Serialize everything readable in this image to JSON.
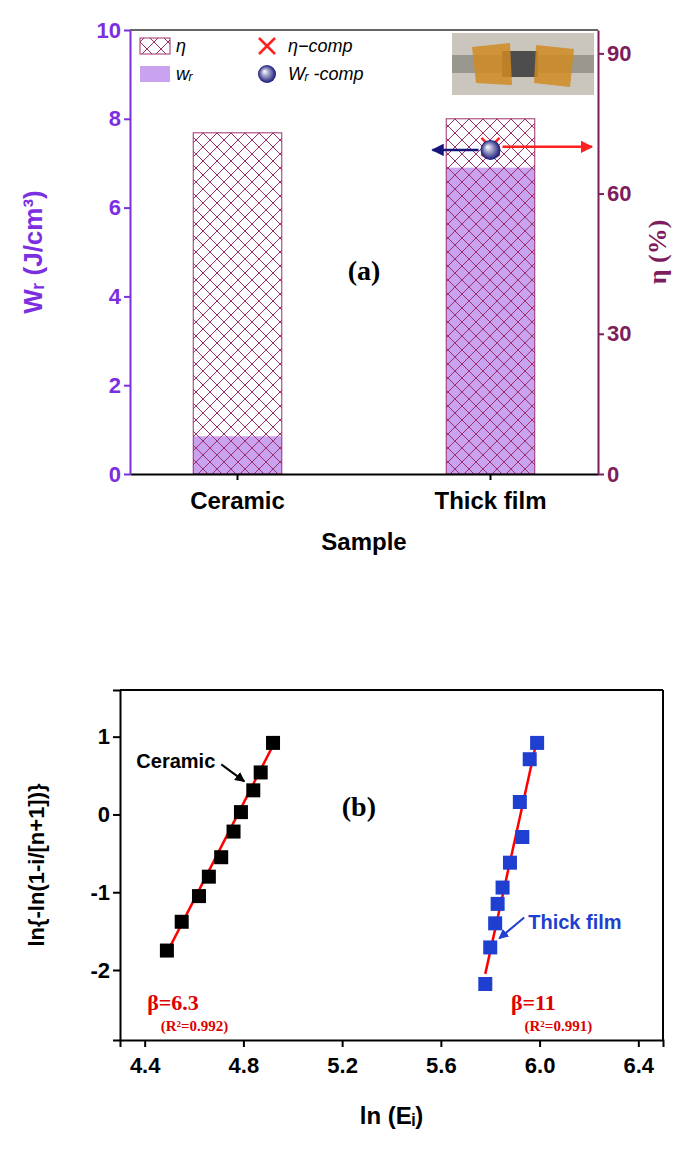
{
  "chart_data": [
    {
      "type": "bar",
      "annotations": [
        "(a)"
      ],
      "categories": [
        "Ceramic",
        "Thick film"
      ],
      "x_label": "Sample",
      "y_label": "Wᵣ (J/cm³)",
      "y2_label": "η (%)",
      "ylim": [
        0,
        10
      ],
      "yticks": [
        0,
        2,
        4,
        6,
        8,
        10
      ],
      "y2lim": [
        0,
        95
      ],
      "y2ticks": [
        0,
        30,
        60,
        90
      ],
      "legend": "upper left",
      "series": [
        {
          "name": "η",
          "type": "bar",
          "axis": "y2",
          "line_style": "hatched",
          "color": "#9c2f6a",
          "values": [
            73,
            76
          ]
        },
        {
          "name": "wᵣ",
          "type": "bar",
          "color": "#c9a3f0",
          "values": [
            0.85,
            6.9
          ]
        },
        {
          "name": "η−comp",
          "type": "scatter",
          "axis": "y2",
          "marker": "x",
          "color": "#ff2020",
          "values": [
            null,
            70
          ]
        },
        {
          "name": "Wᵣ -comp",
          "type": "scatter",
          "marker": "sphere",
          "color": "#16167a",
          "values": [
            null,
            7.3
          ]
        }
      ]
    },
    {
      "type": "scatter",
      "annotations": [
        "(b)",
        "β=6.3",
        "(R²=0.992)",
        "β=11",
        "(R²=0.991)"
      ],
      "x_label": "ln (Eᵢ)",
      "y_label": "ln{-ln(1-i/[n+1])}",
      "xlim": [
        4.3,
        6.5
      ],
      "xticks": [
        4.4,
        4.8,
        5.2,
        5.6,
        {
          "value": 6,
          "label": "6.0"
        },
        6.4
      ],
      "ylim": [
        -2.9,
        1.6
      ],
      "yticks": [
        -2,
        -1,
        0,
        1
      ],
      "series": [
        {
          "name": "Ceramic",
          "type": "scatter",
          "marker": "square",
          "color": "#000000",
          "x": [
            4.49,
            4.55,
            4.62,
            4.66,
            4.71,
            4.76,
            4.79,
            4.84,
            4.87,
            4.92
          ],
          "values": [
            -1.75,
            -1.38,
            -1.05,
            -0.8,
            -0.55,
            -0.22,
            0.03,
            0.31,
            0.54,
            0.92
          ]
        },
        {
          "name": "Thick film",
          "type": "scatter",
          "marker": "square",
          "color": "#1f3fd0",
          "x": [
            5.78,
            5.8,
            5.82,
            5.83,
            5.85,
            5.88,
            5.93,
            5.92,
            5.96,
            5.99
          ],
          "values": [
            -2.18,
            -1.71,
            -1.4,
            -1.15,
            -0.94,
            -0.62,
            -0.29,
            0.16,
            0.71,
            0.92
          ]
        },
        {
          "type": "line",
          "color": "#ff0000",
          "x": [
            4.49,
            4.93
          ],
          "values": [
            -1.78,
            0.95
          ]
        },
        {
          "type": "line",
          "color": "#ff0000",
          "x": [
            5.78,
            5.99
          ],
          "values": [
            -2.05,
            0.97
          ]
        }
      ]
    }
  ]
}
